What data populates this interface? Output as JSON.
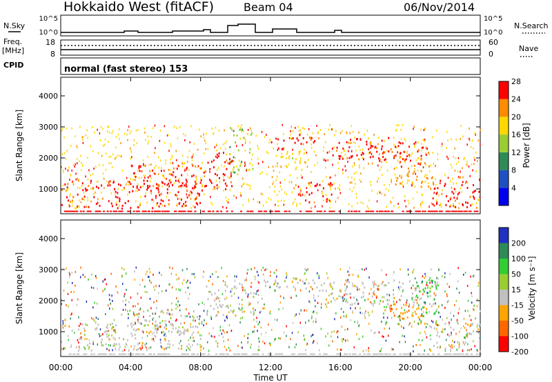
{
  "header": {
    "station": "Hokkaido West (fitACF)",
    "beam": "Beam 04",
    "date": "06/Nov/2014"
  },
  "top_panels": {
    "nsky_label": "N.Sky",
    "nsky_ticks": [
      "10^5",
      "10^0"
    ],
    "nsky_right_ticks": [
      "10^5",
      "10^0"
    ],
    "nsearch_label": "N.Search",
    "freq_label": "Freq.",
    "freq_unit": "[MHz]",
    "freq_ticks": [
      "18",
      "8"
    ],
    "nave_ticks": [
      "60",
      "0"
    ],
    "nave_label": "Nave",
    "cpid_label": "CPID",
    "cpid_text": "normal (fast stereo) 153"
  },
  "chart_data": [
    {
      "type": "heatmap",
      "name": "power",
      "ylabel": "Slant Range [km]",
      "xlabel": "Time UT",
      "yticks": [
        "1000",
        "2000",
        "3000",
        "4000"
      ],
      "ylim": [
        200,
        4600
      ],
      "xticks": [
        "00:00",
        "04:00",
        "08:00",
        "12:00",
        "16:00",
        "20:00",
        "00:00"
      ],
      "colorbar": {
        "label": "Power [dB]",
        "ticks": [
          "4",
          "8",
          "12",
          "16",
          "20",
          "24",
          "28"
        ],
        "colors": [
          "#0000ee",
          "#2050c0",
          "#2e8b57",
          "#9acd32",
          "#ffd700",
          "#ff8c00",
          "#ff0000"
        ]
      },
      "regions": [
        {
          "t0": 0.0,
          "t1": 8.3,
          "r0": 400,
          "r1": 1300,
          "level": 6
        },
        {
          "t0": 4.0,
          "t1": 8.3,
          "r0": 1000,
          "r1": 1800,
          "level": 6
        },
        {
          "t0": 8.3,
          "t1": 9.8,
          "r0": 1000,
          "r1": 2200,
          "level": 6
        },
        {
          "t0": 9.6,
          "t1": 11.0,
          "r0": 1500,
          "r1": 3000,
          "level": 3
        },
        {
          "t0": 11.8,
          "t1": 14.5,
          "r0": 2300,
          "r1": 2800,
          "level": 6
        },
        {
          "t0": 13.5,
          "t1": 15.5,
          "r0": 600,
          "r1": 1400,
          "level": 6
        },
        {
          "t0": 15.0,
          "t1": 21.0,
          "r0": 1900,
          "r1": 2700,
          "level": 6
        },
        {
          "t0": 19.0,
          "t1": 21.5,
          "r0": 1100,
          "r1": 2100,
          "level": 5
        },
        {
          "t0": 21.0,
          "t1": 24.0,
          "r0": 400,
          "r1": 1300,
          "level": 6
        },
        {
          "t0": 12.5,
          "t1": 14.0,
          "r0": 1600,
          "r1": 2300,
          "level": 4
        }
      ]
    },
    {
      "type": "heatmap",
      "name": "velocity",
      "ylabel": "Slant Range [km]",
      "xlabel": "Time UT",
      "yticks": [
        "1000",
        "2000",
        "3000",
        "4000"
      ],
      "ylim": [
        200,
        4600
      ],
      "xticks": [
        "00:00",
        "04:00",
        "08:00",
        "12:00",
        "16:00",
        "20:00",
        "00:00"
      ],
      "colorbar": {
        "label": "Velocity [m s⁻¹]",
        "ticks": [
          "200",
          "100",
          "50",
          "15",
          "-15",
          "-50",
          "-100",
          "-200"
        ],
        "colors": [
          "#2030c0",
          "#2e8b57",
          "#32cd32",
          "#9acd32",
          "#c0c0c0",
          "#ffa500",
          "#ff6600",
          "#ff0000"
        ]
      },
      "regions": [
        {
          "t0": 0.0,
          "t1": 8.3,
          "r0": 400,
          "r1": 1300,
          "level": 4
        },
        {
          "t0": 4.0,
          "t1": 8.3,
          "r0": 1000,
          "r1": 1800,
          "level": 4
        },
        {
          "t0": 8.3,
          "t1": 11.5,
          "r0": 1500,
          "r1": 2700,
          "level": 4
        },
        {
          "t0": 11.5,
          "t1": 15.0,
          "r0": 2300,
          "r1": 2700,
          "level": 4
        },
        {
          "t0": 15.0,
          "t1": 21.5,
          "r0": 1900,
          "r1": 2700,
          "level": 4
        },
        {
          "t0": 18.5,
          "t1": 21.0,
          "r0": 1100,
          "r1": 2100,
          "level": 5
        },
        {
          "t0": 21.0,
          "t1": 24.0,
          "r0": 400,
          "r1": 1300,
          "level": 4
        },
        {
          "t0": 20.3,
          "t1": 21.6,
          "r0": 1200,
          "r1": 2700,
          "level": 2
        }
      ]
    }
  ]
}
